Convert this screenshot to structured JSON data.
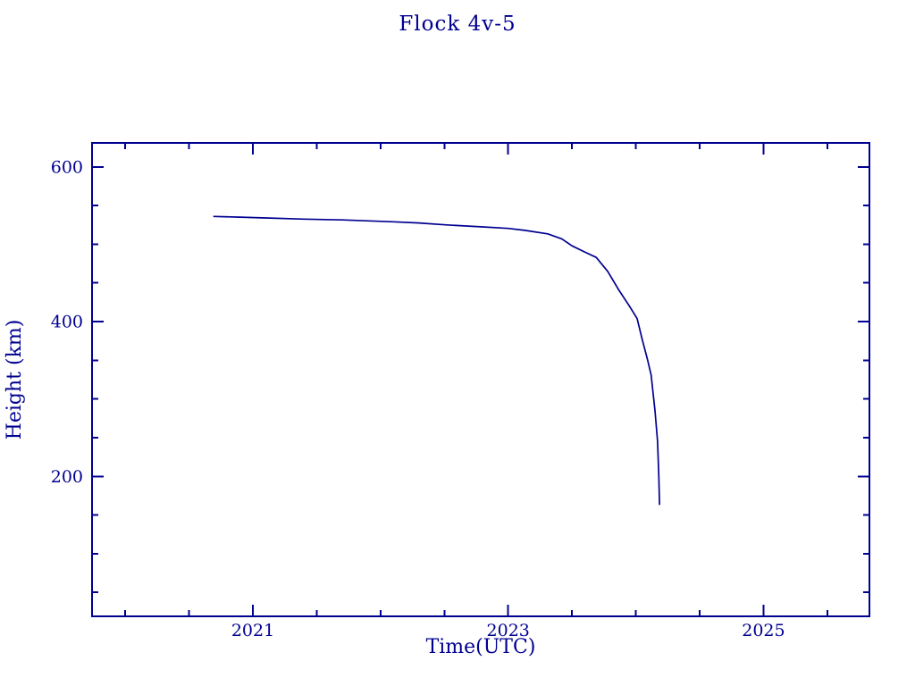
{
  "title": "Flock 4v-5",
  "axes": {
    "xlabel": "Time(UTC)",
    "ylabel": "Height (km)"
  },
  "colors": {
    "line": "#000090",
    "frame": "#000090",
    "text": "#000090",
    "background": "#ffffff"
  },
  "chart_data": {
    "type": "line",
    "title": "Flock 4v-5",
    "xlabel": "Time(UTC)",
    "ylabel": "Height (km)",
    "xlim": [
      2019.74,
      2025.83
    ],
    "ylim": [
      19,
      631
    ],
    "grid": false,
    "legend": "none",
    "x_major_ticks": [
      2021,
      2023,
      2025
    ],
    "x_major_tick_labels": [
      "2021",
      "2023",
      "2025"
    ],
    "x_minor_tick_step": 0.5,
    "y_major_ticks": [
      200,
      400,
      600
    ],
    "y_major_tick_labels": [
      "200",
      "400",
      "600"
    ],
    "y_minor_tick_step": 50,
    "line_color": "#000090",
    "series": [
      {
        "name": "Flock 4v-5 height",
        "points": [
          [
            2020.69,
            536
          ],
          [
            2020.9,
            535
          ],
          [
            2021.1,
            534
          ],
          [
            2021.4,
            532.5
          ],
          [
            2021.7,
            531.5
          ],
          [
            2022.1,
            529
          ],
          [
            2022.3,
            527.5
          ],
          [
            2022.52,
            525
          ],
          [
            2022.8,
            522.5
          ],
          [
            2023.0,
            520.5
          ],
          [
            2023.13,
            518
          ],
          [
            2023.31,
            513.5
          ],
          [
            2023.42,
            507
          ],
          [
            2023.5,
            498
          ],
          [
            2023.6,
            490
          ],
          [
            2023.69,
            483
          ],
          [
            2023.78,
            465
          ],
          [
            2023.87,
            440
          ],
          [
            2023.95,
            420
          ],
          [
            2024.01,
            404
          ],
          [
            2024.05,
            377
          ],
          [
            2024.09,
            352
          ],
          [
            2024.12,
            331
          ],
          [
            2024.15,
            285
          ],
          [
            2024.17,
            245
          ],
          [
            2024.18,
            200
          ],
          [
            2024.186,
            163
          ]
        ]
      }
    ]
  }
}
